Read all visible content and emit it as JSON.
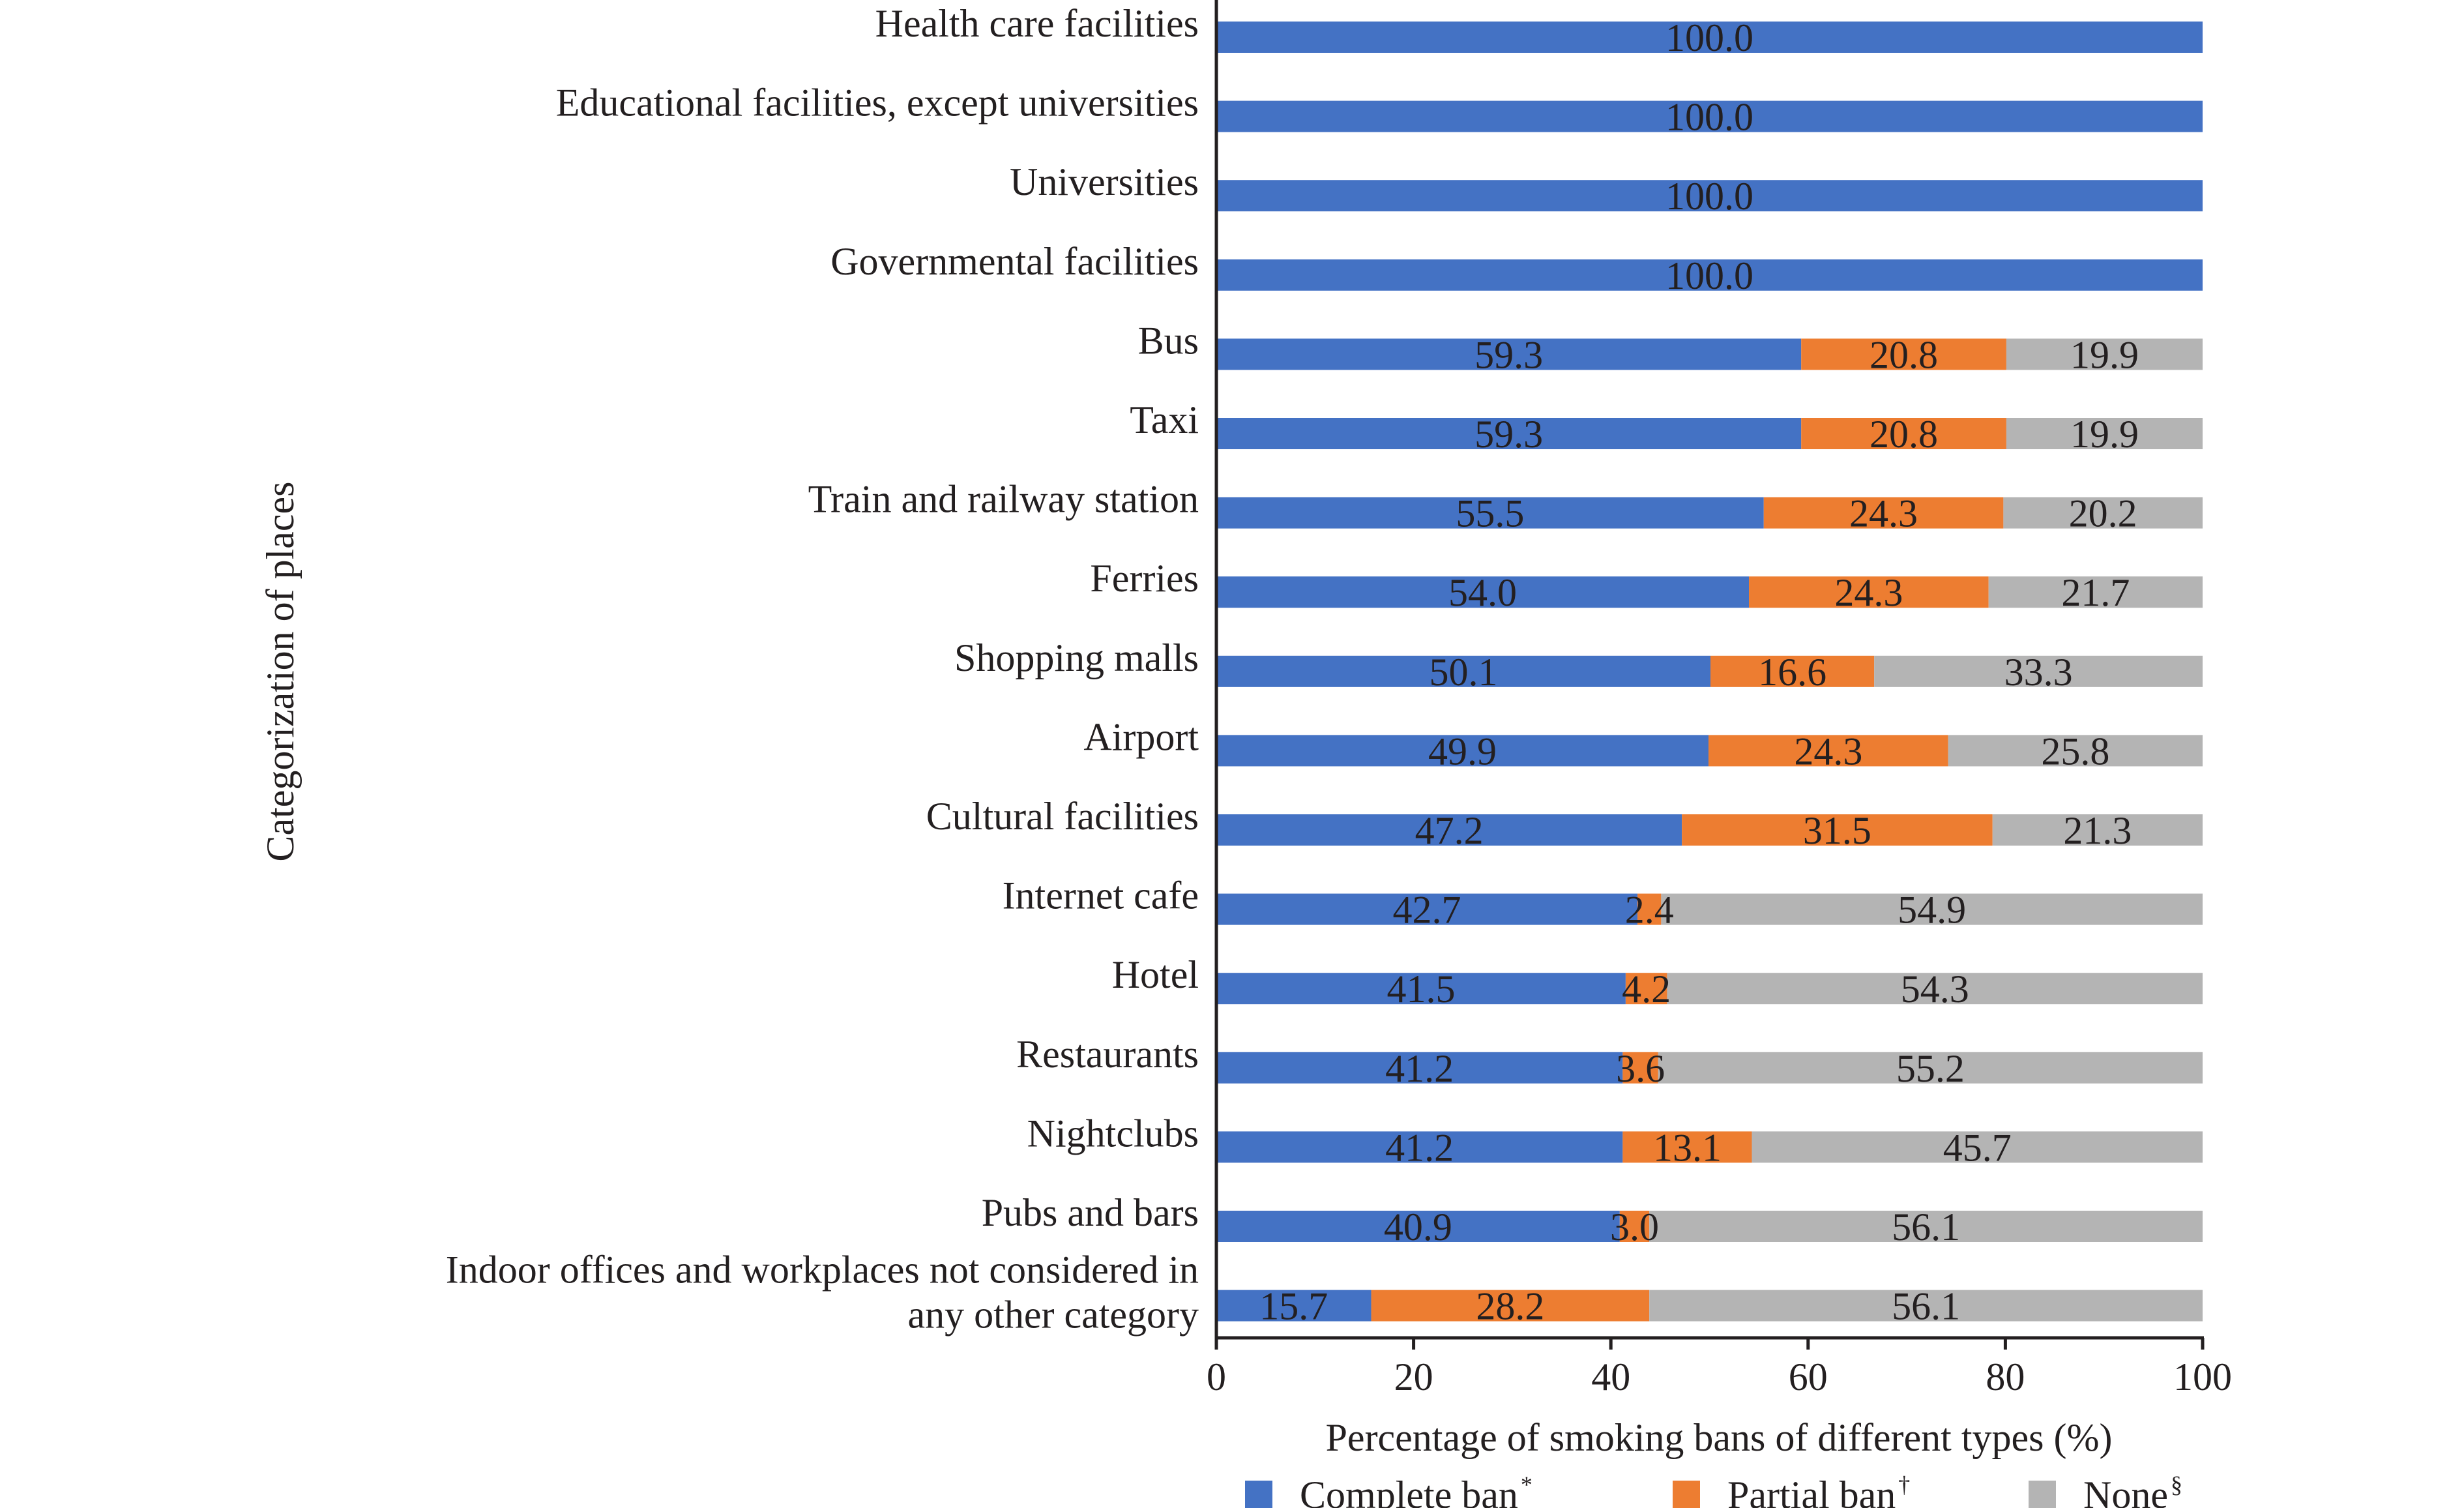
{
  "chart_data": {
    "type": "bar",
    "orientation": "horizontal",
    "stacked": true,
    "categories": [
      "Health care facilities",
      "Educational facilities, except universities",
      "Universities",
      "Governmental facilities",
      "Bus",
      "Taxi",
      "Train and railway station",
      "Ferries",
      "Shopping malls",
      "Airport",
      "Cultural facilities",
      "Internet cafe",
      "Hotel",
      "Restaurants",
      "Nightclubs",
      "Pubs and bars",
      "Indoor offices and workplaces not considered in any other category"
    ],
    "category_lines": [
      [
        "Health care facilities"
      ],
      [
        "Educational facilities, except universities"
      ],
      [
        "Universities"
      ],
      [
        "Governmental facilities"
      ],
      [
        "Bus"
      ],
      [
        "Taxi"
      ],
      [
        "Train and railway station"
      ],
      [
        "Ferries"
      ],
      [
        "Shopping malls"
      ],
      [
        "Airport"
      ],
      [
        "Cultural facilities"
      ],
      [
        "Internet cafe"
      ],
      [
        "Hotel"
      ],
      [
        "Restaurants"
      ],
      [
        "Nightclubs"
      ],
      [
        "Pubs and bars"
      ],
      [
        "Indoor offices and workplaces not considered in",
        "any other category"
      ]
    ],
    "series": [
      {
        "name": "Complete ban",
        "marker": "*",
        "color": "#4472c4",
        "values": [
          100.0,
          100.0,
          100.0,
          100.0,
          59.3,
          59.3,
          55.5,
          54.0,
          50.1,
          49.9,
          47.2,
          42.7,
          41.5,
          41.2,
          41.2,
          40.9,
          15.7
        ],
        "labels": [
          "100.0",
          "100.0",
          "100.0",
          "100.0",
          "59.3",
          "59.3",
          "55.5",
          "54.0",
          "50.1",
          "49.9",
          "47.2",
          "42.7",
          "41.5",
          "41.2",
          "41.2",
          "40.9",
          "15.7"
        ]
      },
      {
        "name": "Partial ban",
        "marker": "†",
        "color": "#ed7d31",
        "values": [
          0,
          0,
          0,
          0,
          20.8,
          20.8,
          24.3,
          24.3,
          16.6,
          24.3,
          31.5,
          2.4,
          4.2,
          3.6,
          13.1,
          3.0,
          28.2
        ],
        "labels": [
          "",
          "",
          "",
          "",
          "20.8",
          "20.8",
          "24.3",
          "24.3",
          "16.6",
          "24.3",
          "31.5",
          "2.4",
          "4.2",
          "3.6",
          "13.1",
          "3.0",
          "28.2"
        ]
      },
      {
        "name": "None",
        "marker": "§",
        "color": "#b4b4b4",
        "values": [
          0,
          0,
          0,
          0,
          19.9,
          19.9,
          20.2,
          21.7,
          33.3,
          25.8,
          21.3,
          54.9,
          54.3,
          55.2,
          45.7,
          56.1,
          56.1
        ],
        "labels": [
          "",
          "",
          "",
          "",
          "19.9",
          "19.9",
          "20.2",
          "21.7",
          "33.3",
          "25.8",
          "21.3",
          "54.9",
          "54.3",
          "55.2",
          "45.7",
          "56.1",
          "56.1"
        ]
      }
    ],
    "xlabel": "Percentage of smoking bans of different types (%)",
    "ylabel": "Categorization of places",
    "xlim": [
      0,
      100
    ],
    "xticks": [
      0,
      20,
      40,
      60,
      80,
      100
    ],
    "grid": false,
    "legend_position": "bottom"
  }
}
